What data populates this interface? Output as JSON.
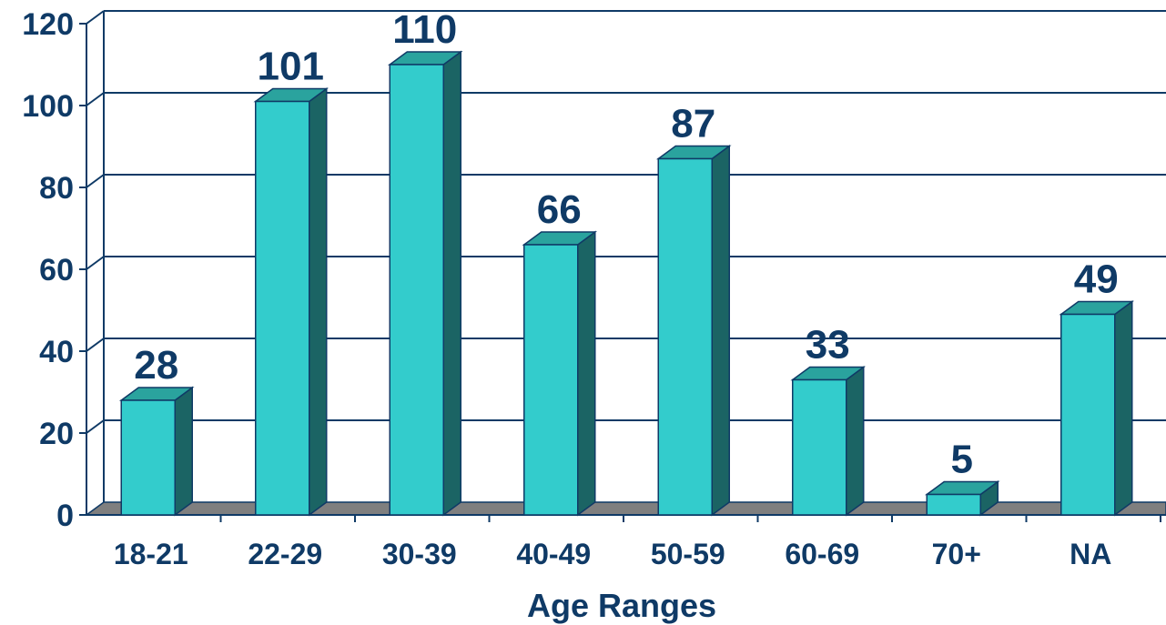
{
  "chart_data": {
    "type": "bar",
    "title": "",
    "xlabel": "Age Ranges",
    "ylabel": "",
    "categories": [
      "18-21",
      "22-29",
      "30-39",
      "40-49",
      "50-59",
      "60-69",
      "70+",
      "NA"
    ],
    "values": [
      28,
      101,
      110,
      66,
      87,
      33,
      5,
      49
    ],
    "data_labels": [
      "28",
      "101",
      "110",
      "66",
      "87",
      "33",
      "5",
      "49"
    ],
    "y_ticks": [
      "0",
      "20",
      "40",
      "60",
      "80",
      "100",
      "120"
    ],
    "ylim": [
      0,
      120
    ],
    "grid": true,
    "legend": "none",
    "style": "3d-column",
    "colors": {
      "bar_front": "#33cccc",
      "bar_top": "#2aa39e",
      "bar_side": "#1b6464",
      "bar_outline": "#0f3a66",
      "floor": "#7f7f7f",
      "grid": "#0f3a66",
      "text": "#0f3a66"
    }
  }
}
